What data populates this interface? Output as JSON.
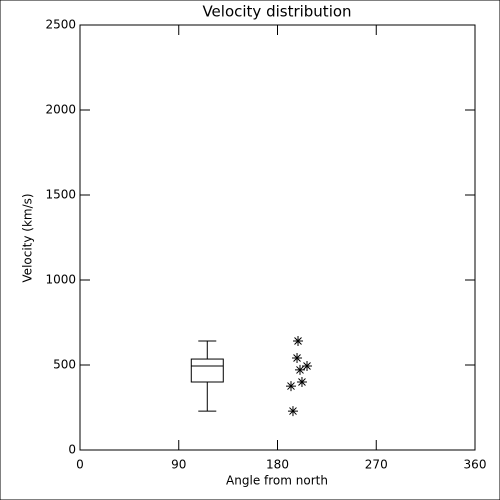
{
  "chart_data": {
    "type": "box",
    "title": "Velocity distribution",
    "x_label": "Angle from north",
    "y_label": "Velocity (km/s)",
    "xlim": [
      0,
      360
    ],
    "xticks": [
      0,
      90,
      180,
      270,
      360
    ],
    "ylim": [
      0,
      2500
    ],
    "yticks": [
      0,
      500,
      1000,
      1500,
      2000,
      2500
    ],
    "color": "#000000",
    "box": {
      "x": 116,
      "whisker_low": 229,
      "q1": 400,
      "median": 494,
      "q3": 535,
      "whisker_high": 641
    },
    "points": {
      "x": [
        198.7,
        197.8,
        192.3,
        202.3,
        194.1,
        200.5,
        206.9
      ],
      "y": [
        641,
        541,
        376,
        400,
        229,
        471,
        494
      ]
    }
  }
}
